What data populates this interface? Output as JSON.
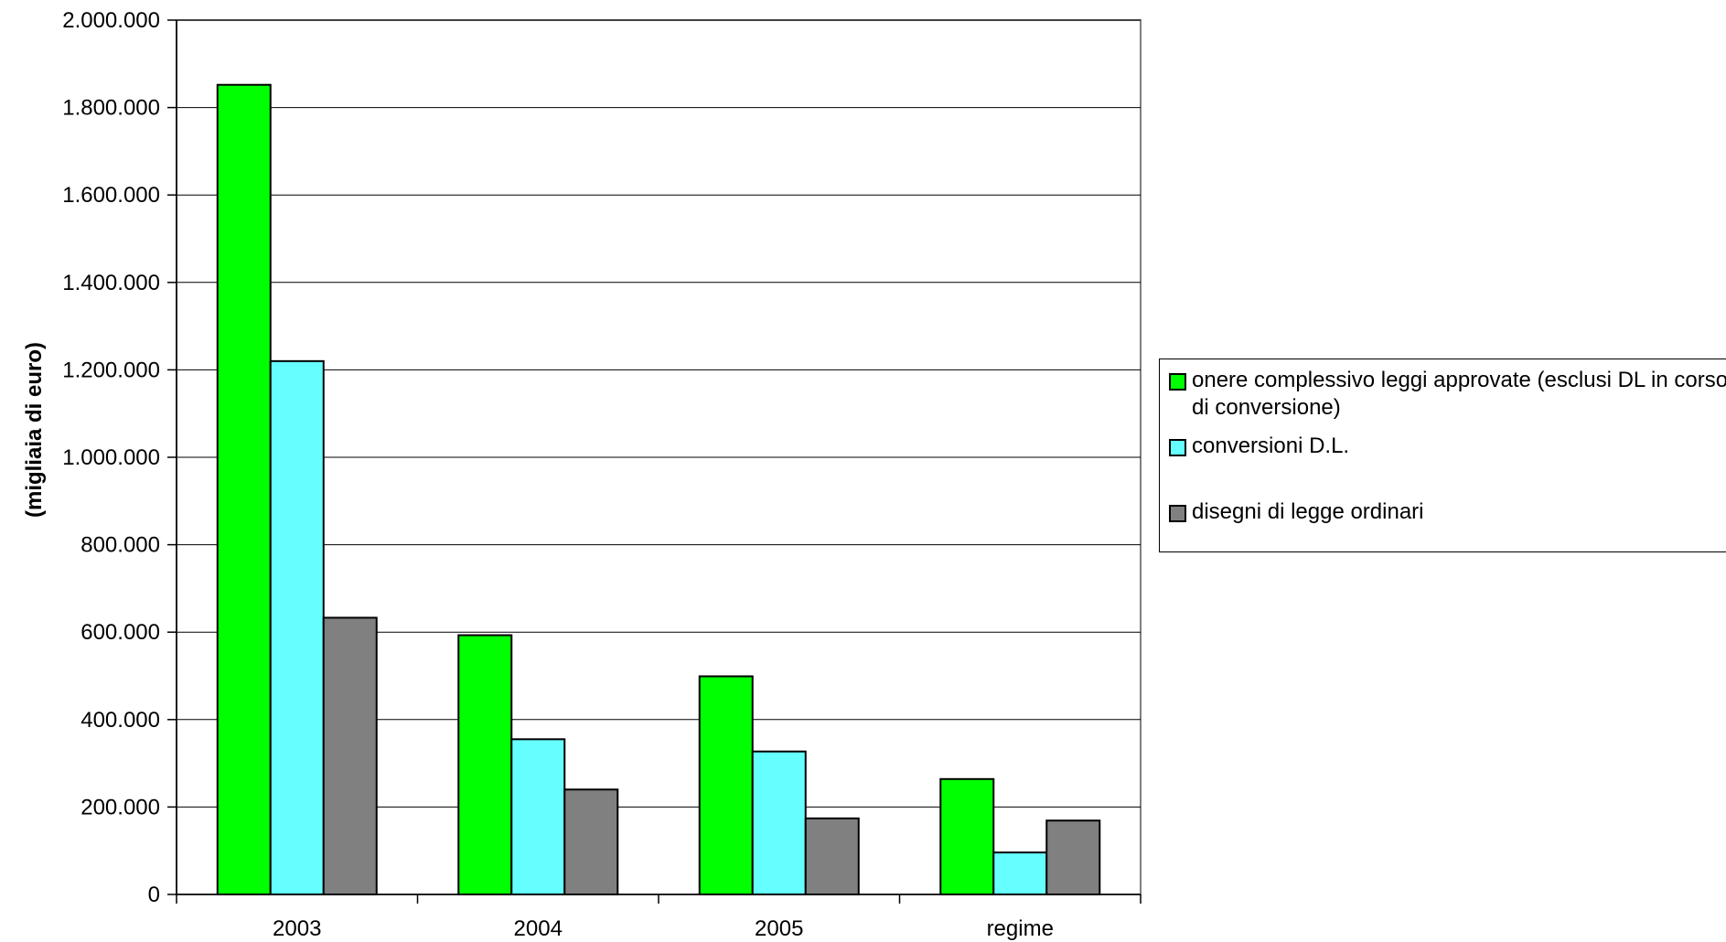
{
  "chart_data": {
    "type": "bar",
    "categories": [
      "2003",
      "2004",
      "2005",
      "regime"
    ],
    "series": [
      {
        "name": "onere complessivo leggi approvate (esclusi DL in corso di conversione)",
        "color": "#00ff00",
        "values": [
          1852000,
          593000,
          499000,
          264000
        ]
      },
      {
        "name": "conversioni D.L.",
        "color": "#66ffff",
        "values": [
          1220000,
          355000,
          327000,
          96000
        ]
      },
      {
        "name": "disegni di legge ordinari",
        "color": "#808080",
        "values": [
          633000,
          240000,
          174000,
          169000
        ]
      }
    ],
    "ylabel": "(migliaia di euro)",
    "ylim": [
      0,
      2000000
    ],
    "yticks": [
      0,
      200000,
      400000,
      600000,
      800000,
      1000000,
      1200000,
      1400000,
      1600000,
      1800000,
      2000000
    ],
    "ytick_labels": [
      "0",
      "200.000",
      "400.000",
      "600.000",
      "800.000",
      "1.000.000",
      "1.200.000",
      "1.400.000",
      "1.600.000",
      "1.800.000",
      "2.000.000"
    ],
    "grid": true,
    "legend_position": "right"
  }
}
